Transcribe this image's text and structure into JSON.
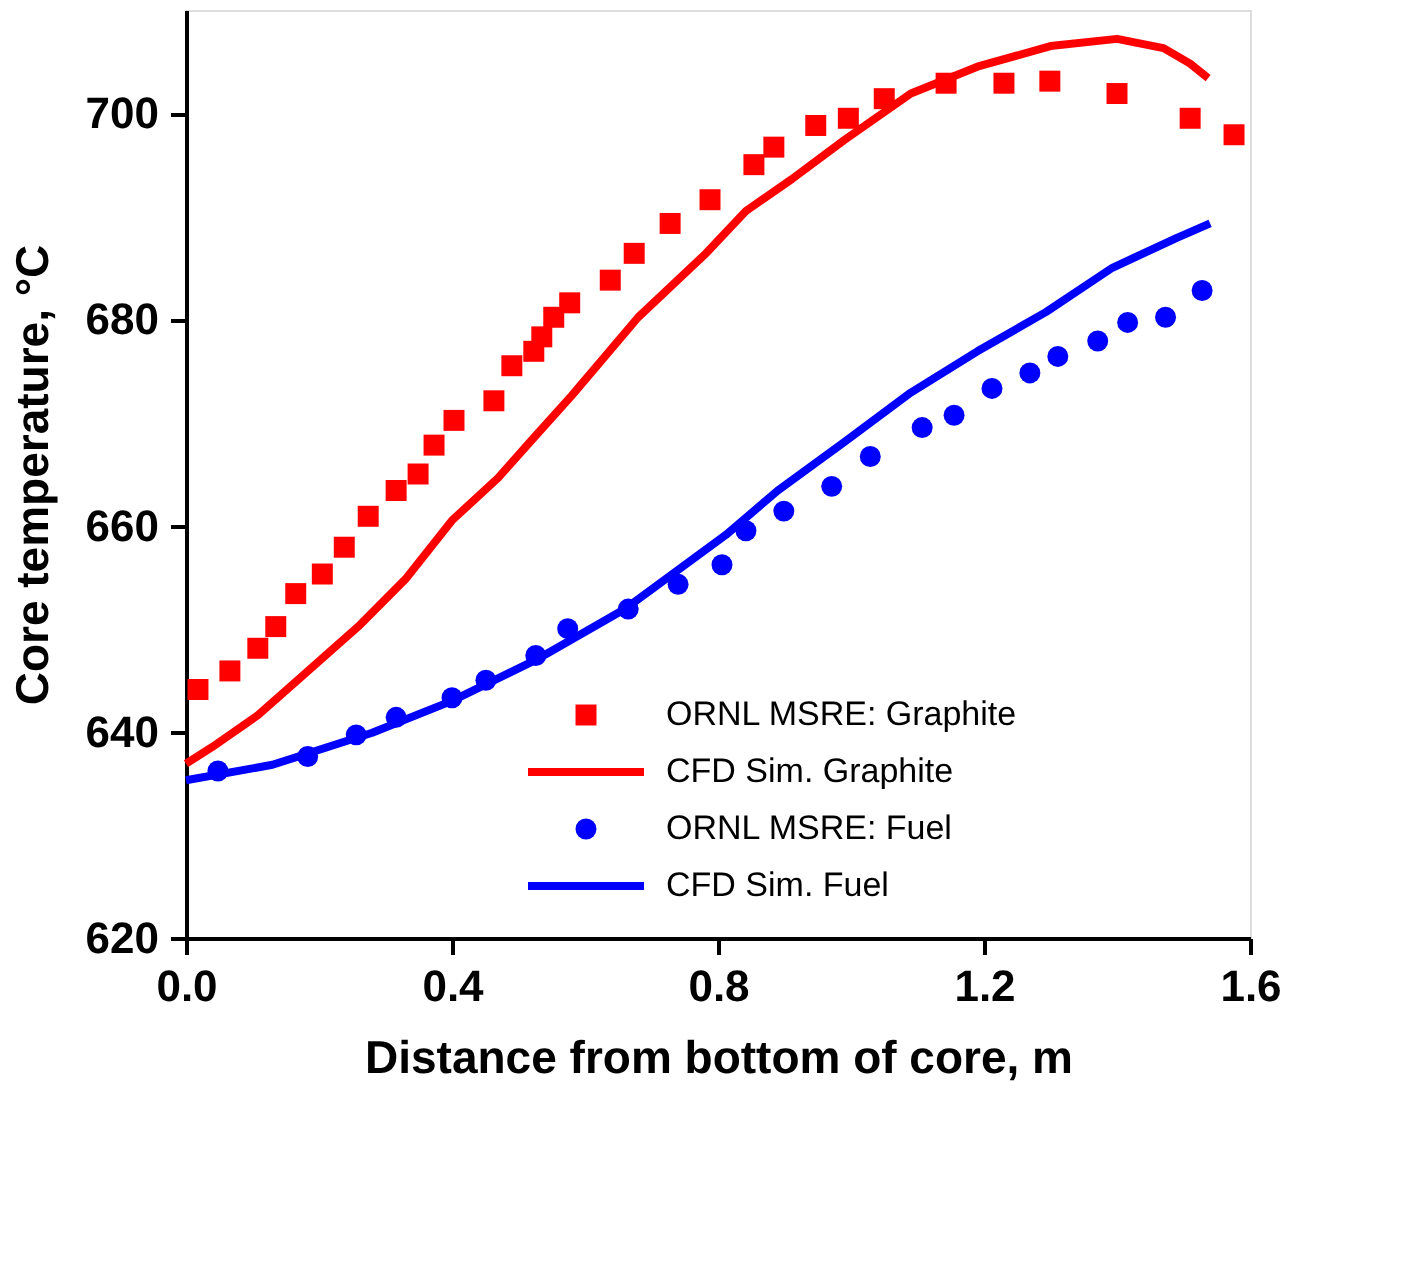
{
  "chart_data": {
    "type": "scatter",
    "xlabel": "Distance from bottom of core, m",
    "ylabel": "Core temperature, °C",
    "xlim": [
      0,
      1.6
    ],
    "xticks": [
      {
        "value": 0,
        "label": "0.0"
      },
      0.4,
      0.8,
      1.2,
      1.6
    ],
    "ylim": [
      620,
      710
    ],
    "yticks": [
      620,
      640,
      660,
      680,
      700
    ],
    "grid": false,
    "legend": "bottom right",
    "series": [
      {
        "name": "ORNL MSRE: Graphite",
        "marker": "square",
        "color": "#ff0000",
        "x": [
          0.018,
          0.066,
          0.108,
          0.135,
          0.165,
          0.205,
          0.238,
          0.274,
          0.316,
          0.349,
          0.373,
          0.403,
          0.463,
          0.49,
          0.523,
          0.535,
          0.553,
          0.577,
          0.638,
          0.674,
          0.728,
          0.788,
          0.854,
          0.884,
          0.947,
          0.996,
          1.05,
          1.143,
          1.23,
          1.299,
          1.4,
          1.51,
          1.576
        ],
        "values": [
          644.1,
          645.9,
          648.1,
          650.2,
          653.4,
          655.3,
          657.9,
          660.9,
          663.4,
          665.0,
          667.8,
          670.2,
          672.1,
          675.5,
          676.9,
          678.3,
          680.2,
          681.6,
          683.8,
          686.4,
          689.3,
          691.6,
          695.0,
          696.7,
          698.8,
          699.5,
          701.4,
          702.9,
          702.9,
          703.1,
          701.9,
          699.5,
          697.9
        ]
      },
      {
        "name": "CFD Sim. Graphite",
        "type": "line",
        "marker": "none",
        "color": "#ff0000",
        "x": [
          0,
          0.039,
          0.108,
          0.18,
          0.259,
          0.33,
          0.4,
          0.469,
          0.52,
          0.58,
          0.68,
          0.782,
          0.842,
          0.911,
          0.99,
          1.09,
          1.19,
          1.3,
          1.4,
          1.47,
          1.51,
          1.537
        ],
        "values": [
          636.9,
          638.5,
          641.6,
          645.7,
          650.2,
          654.8,
          660.5,
          664.6,
          668.3,
          672.6,
          680.2,
          686.4,
          690.5,
          693.6,
          697.4,
          701.9,
          704.5,
          706.5,
          707.2,
          706.3,
          704.8,
          703.4
        ]
      },
      {
        "name": "ORNL MSRE: Fuel",
        "marker": "circle",
        "color": "#0000ff",
        "x": [
          0.048,
          0.183,
          0.256,
          0.316,
          0.4,
          0.451,
          0.526,
          0.574,
          0.665,
          0.74,
          0.806,
          0.842,
          0.899,
          0.971,
          1.029,
          1.107,
          1.155,
          1.212,
          1.269,
          1.311,
          1.371,
          1.416,
          1.473,
          1.528
        ],
        "values": [
          636.2,
          637.6,
          639.7,
          641.4,
          643.3,
          645.0,
          647.4,
          650.0,
          651.9,
          654.3,
          656.2,
          659.5,
          661.4,
          663.8,
          666.7,
          669.5,
          670.7,
          673.3,
          674.8,
          676.4,
          677.9,
          679.7,
          680.2,
          682.8
        ]
      },
      {
        "name": "CFD Sim. Fuel",
        "type": "line",
        "marker": "none",
        "color": "#0000ff",
        "x": [
          0,
          0.13,
          0.28,
          0.4,
          0.53,
          0.66,
          0.812,
          0.89,
          0.99,
          1.09,
          1.19,
          1.293,
          1.393,
          1.49,
          1.54
        ],
        "values": [
          635.3,
          636.8,
          639.9,
          643.0,
          647.1,
          651.9,
          659.1,
          663.4,
          668.1,
          672.9,
          676.9,
          680.7,
          685.0,
          687.9,
          689.3
        ]
      }
    ]
  }
}
